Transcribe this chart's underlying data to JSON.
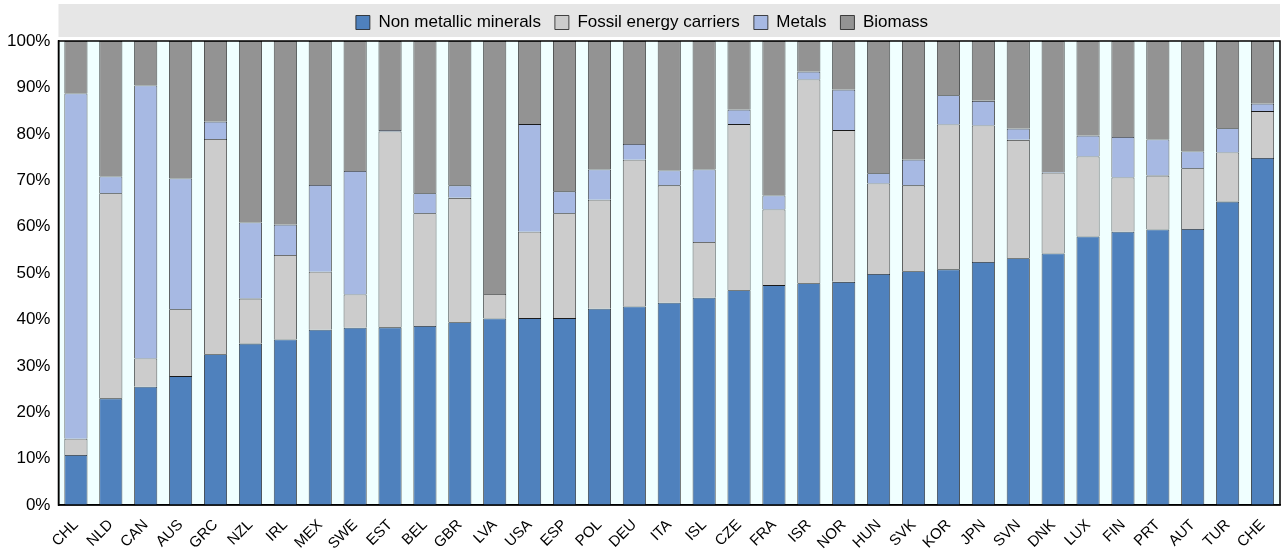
{
  "chart_data": {
    "type": "bar",
    "stacked": true,
    "legend": "top",
    "grid": false,
    "categories": [
      "CHL",
      "NLD",
      "CAN",
      "AUS",
      "GRC",
      "NZL",
      "IRL",
      "MEX",
      "SWE",
      "EST",
      "BEL",
      "GBR",
      "LVA",
      "USA",
      "ESP",
      "POL",
      "DEU",
      "ITA",
      "ISL",
      "CZE",
      "FRA",
      "ISR",
      "NOR",
      "HUN",
      "SVK",
      "KOR",
      "JPN",
      "SVN",
      "DNK",
      "LUX",
      "FIN",
      "PRT",
      "AUT",
      "TUR",
      "CHE"
    ],
    "ylim": [
      0,
      100
    ],
    "yticks": [
      {
        "value": 0,
        "label": "0%"
      },
      {
        "value": 10,
        "label": "10%"
      },
      {
        "value": 20,
        "label": "20%"
      },
      {
        "value": 30,
        "label": "30%"
      },
      {
        "value": 40,
        "label": "40%"
      },
      {
        "value": 50,
        "label": "50%"
      },
      {
        "value": 60,
        "label": "60%"
      },
      {
        "value": 70,
        "label": "70%"
      },
      {
        "value": 80,
        "label": "80%"
      },
      {
        "value": 90,
        "label": "90%"
      },
      {
        "value": 100,
        "label": "100%"
      }
    ],
    "series": [
      {
        "name": "Non metallic minerals",
        "color": "#4f81bd",
        "values": [
          10.8,
          23,
          25.5,
          27.8,
          32.5,
          34.8,
          35.7,
          37.8,
          38.2,
          38.3,
          38.6,
          39.4,
          40.2,
          40.3,
          40.3,
          42.3,
          42.8,
          43.6,
          44.7,
          46.3,
          47.4,
          47.8,
          48.1,
          49.8,
          50.4,
          50.8,
          52.4,
          53.2,
          54.2,
          57.9,
          58.9,
          59.4,
          59.5,
          65.4,
          74.8
        ]
      },
      {
        "name": "Fossil energy carriers",
        "color": "#cccccc",
        "values": [
          3.5,
          44.2,
          6.1,
          14.4,
          46.4,
          9.7,
          18.2,
          12.5,
          7.2,
          42.2,
          24.3,
          26.8,
          5.3,
          18.6,
          22.6,
          23.5,
          31.6,
          25.3,
          12,
          35.8,
          16.3,
          43.9,
          32.7,
          19.5,
          18.5,
          31.2,
          29.4,
          25.5,
          17.4,
          17.2,
          11.7,
          11.6,
          13.1,
          10.6,
          10.1
        ]
      },
      {
        "name": "Metals",
        "color": "#a7b9e3",
        "values": [
          74.4,
          3.6,
          58.8,
          28.2,
          3.7,
          16.4,
          6.5,
          18.7,
          26.6,
          0.3,
          4.3,
          2.7,
          0,
          23.2,
          4.7,
          6.5,
          3.4,
          3.2,
          15.6,
          3.1,
          3,
          1.7,
          8.7,
          2.2,
          5.5,
          6.3,
          5.3,
          2.4,
          0.2,
          4.5,
          8.7,
          7.8,
          3.6,
          5.2,
          1.6
        ]
      },
      {
        "name": "Biomass",
        "color": "#939393",
        "values": [
          11.3,
          29.2,
          9.6,
          29.6,
          17.4,
          39.1,
          39.6,
          31,
          28,
          19.2,
          32.8,
          31.1,
          54.5,
          17.9,
          32.4,
          27.7,
          22.2,
          27.9,
          27.7,
          14.8,
          33.3,
          6.6,
          10.5,
          28.5,
          25.6,
          11.7,
          12.9,
          18.9,
          28.2,
          20.4,
          20.7,
          21.2,
          23.8,
          18.8,
          13.5
        ]
      }
    ]
  }
}
